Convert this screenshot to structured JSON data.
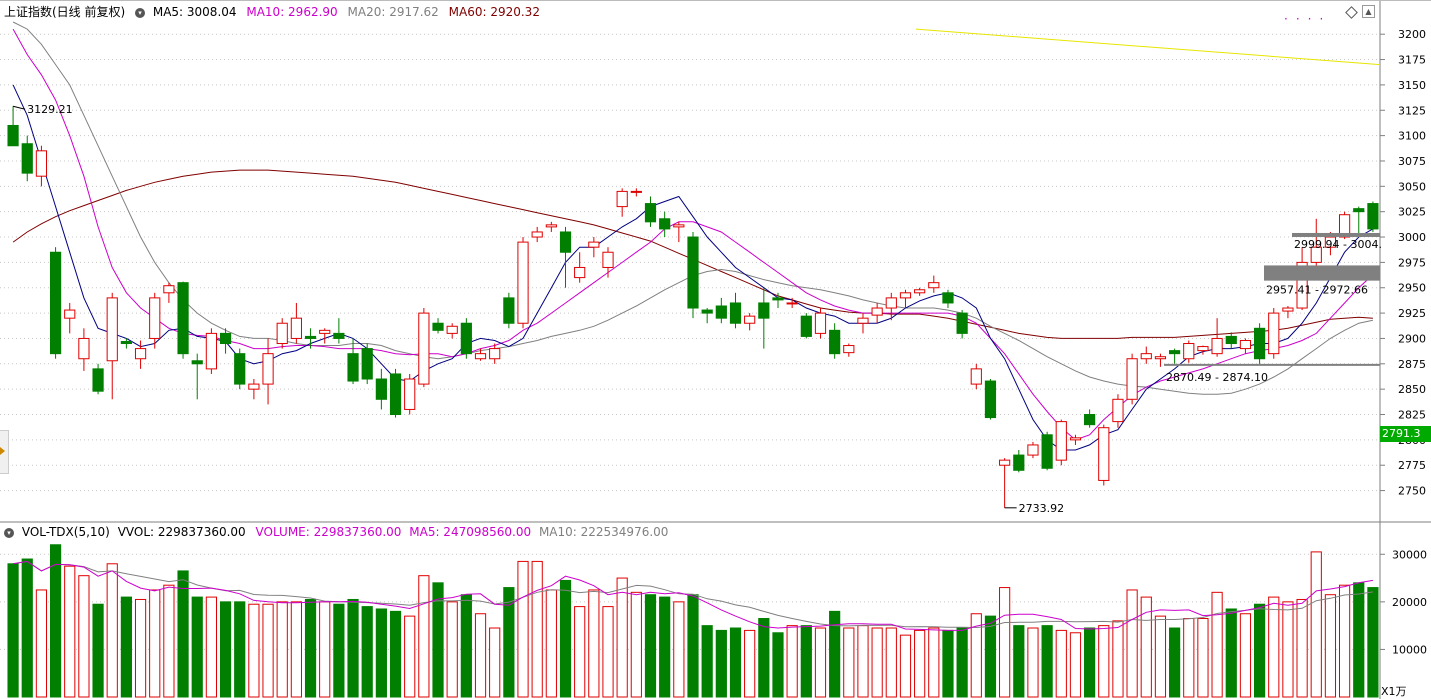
{
  "header": {
    "title": "上证指数(日线 前复权)",
    "ma5_label": "MA5: 3008.04",
    "ma10_label": "MA10: 2962.90",
    "ma20_label": "MA20: 2917.62",
    "ma60_label": "MA60: 2920.32"
  },
  "volume_header": {
    "indicator": "VOL-TDX(5,10)",
    "vvol": "VVOL: 229837360.00",
    "volume": "VOLUME: 229837360.00",
    "ma5": "MA5: 247098560.00",
    "ma10": "MA10: 222534976.00"
  },
  "current_price_tag": "2791.3",
  "volume_unit": "X1万",
  "annotations": {
    "high_label": "3129.21",
    "low_label": "2733.92",
    "range_top": "2999.94 - 3004.",
    "range_mid": "2957.41 - 2972.66",
    "range_low": "2870.49 - 2874.10"
  },
  "colors": {
    "up": "#e00000",
    "down": "#007f00",
    "ma5": "#000080",
    "ma10": "#cc00cc",
    "ma20": "#808080",
    "ma60": "#800000",
    "trend": "#e6e600",
    "price_tag_bg": "#00aa00"
  },
  "chart_data": {
    "type": "candlestick",
    "price_axis": {
      "ticks": [
        2750,
        2775,
        2800,
        2825,
        2850,
        2875,
        2900,
        2925,
        2950,
        2975,
        3000,
        3025,
        3050,
        3075,
        3100,
        3125,
        3150,
        3175,
        3200
      ],
      "range": [
        2720,
        3215
      ]
    },
    "volume_axis": {
      "ticks": [
        10000,
        20000,
        30000
      ],
      "range": [
        0,
        33000
      ],
      "unit": "X1万"
    },
    "candles": [
      {
        "o": 3110,
        "h": 3129,
        "l": 3090,
        "c": 3090,
        "v": 28000
      },
      {
        "o": 3092,
        "h": 3100,
        "l": 3055,
        "c": 3063,
        "v": 29000
      },
      {
        "o": 3060,
        "h": 3090,
        "l": 3050,
        "c": 3085,
        "v": 22500
      },
      {
        "o": 2985,
        "h": 2990,
        "l": 2880,
        "c": 2885,
        "v": 32000
      },
      {
        "o": 2920,
        "h": 2935,
        "l": 2905,
        "c": 2928,
        "v": 27500
      },
      {
        "o": 2880,
        "h": 2910,
        "l": 2868,
        "c": 2900,
        "v": 25500
      },
      {
        "o": 2870,
        "h": 2875,
        "l": 2845,
        "c": 2848,
        "v": 19500
      },
      {
        "o": 2878,
        "h": 2945,
        "l": 2840,
        "c": 2940,
        "v": 28000
      },
      {
        "o": 2897,
        "h": 2900,
        "l": 2890,
        "c": 2895,
        "v": 21000
      },
      {
        "o": 2880,
        "h": 2898,
        "l": 2870,
        "c": 2890,
        "v": 20500
      },
      {
        "o": 2900,
        "h": 2945,
        "l": 2890,
        "c": 2940,
        "v": 22500
      },
      {
        "o": 2945,
        "h": 2955,
        "l": 2935,
        "c": 2952,
        "v": 23500
      },
      {
        "o": 2955,
        "h": 2956,
        "l": 2880,
        "c": 2885,
        "v": 26500
      },
      {
        "o": 2878,
        "h": 2885,
        "l": 2840,
        "c": 2875,
        "v": 21000
      },
      {
        "o": 2870,
        "h": 2910,
        "l": 2865,
        "c": 2905,
        "v": 21000
      },
      {
        "o": 2905,
        "h": 2910,
        "l": 2885,
        "c": 2895,
        "v": 20000
      },
      {
        "o": 2885,
        "h": 2890,
        "l": 2850,
        "c": 2855,
        "v": 20000
      },
      {
        "o": 2850,
        "h": 2860,
        "l": 2840,
        "c": 2855,
        "v": 19500
      },
      {
        "o": 2855,
        "h": 2900,
        "l": 2835,
        "c": 2885,
        "v": 19500
      },
      {
        "o": 2895,
        "h": 2920,
        "l": 2890,
        "c": 2915,
        "v": 20000
      },
      {
        "o": 2900,
        "h": 2935,
        "l": 2895,
        "c": 2920,
        "v": 20000
      },
      {
        "o": 2902,
        "h": 2910,
        "l": 2890,
        "c": 2900,
        "v": 20500
      },
      {
        "o": 2905,
        "h": 2910,
        "l": 2895,
        "c": 2908,
        "v": 20000
      },
      {
        "o": 2905,
        "h": 2920,
        "l": 2895,
        "c": 2900,
        "v": 19500
      },
      {
        "o": 2885,
        "h": 2900,
        "l": 2855,
        "c": 2858,
        "v": 20500
      },
      {
        "o": 2890,
        "h": 2895,
        "l": 2855,
        "c": 2860,
        "v": 19000
      },
      {
        "o": 2860,
        "h": 2870,
        "l": 2830,
        "c": 2840,
        "v": 18500
      },
      {
        "o": 2865,
        "h": 2870,
        "l": 2822,
        "c": 2825,
        "v": 18000
      },
      {
        "o": 2830,
        "h": 2865,
        "l": 2825,
        "c": 2860,
        "v": 17000
      },
      {
        "o": 2855,
        "h": 2930,
        "l": 2852,
        "c": 2925,
        "v": 25500
      },
      {
        "o": 2915,
        "h": 2920,
        "l": 2905,
        "c": 2908,
        "v": 24000
      },
      {
        "o": 2905,
        "h": 2915,
        "l": 2900,
        "c": 2912,
        "v": 20000
      },
      {
        "o": 2915,
        "h": 2920,
        "l": 2880,
        "c": 2885,
        "v": 21500
      },
      {
        "o": 2880,
        "h": 2890,
        "l": 2878,
        "c": 2885,
        "v": 17500
      },
      {
        "o": 2880,
        "h": 2895,
        "l": 2875,
        "c": 2890,
        "v": 14500
      },
      {
        "o": 2940,
        "h": 2945,
        "l": 2910,
        "c": 2915,
        "v": 23000
      },
      {
        "o": 2915,
        "h": 3000,
        "l": 2910,
        "c": 2995,
        "v": 28500
      },
      {
        "o": 3000,
        "h": 3010,
        "l": 2995,
        "c": 3005,
        "v": 28500
      },
      {
        "o": 3010,
        "h": 3015,
        "l": 3005,
        "c": 3012,
        "v": 22500
      },
      {
        "o": 3005,
        "h": 3010,
        "l": 2950,
        "c": 2985,
        "v": 24500
      },
      {
        "o": 2960,
        "h": 2985,
        "l": 2955,
        "c": 2970,
        "v": 19000
      },
      {
        "o": 2990,
        "h": 3000,
        "l": 2980,
        "c": 2995,
        "v": 22500
      },
      {
        "o": 2970,
        "h": 2990,
        "l": 2960,
        "c": 2985,
        "v": 19000
      },
      {
        "o": 3030,
        "h": 3048,
        "l": 3020,
        "c": 3045,
        "v": 25000
      },
      {
        "o": 3045,
        "h": 3048,
        "l": 3040,
        "c": 3045,
        "v": 22000
      },
      {
        "o": 3033,
        "h": 3040,
        "l": 3010,
        "c": 3015,
        "v": 21500
      },
      {
        "o": 3018,
        "h": 3025,
        "l": 3000,
        "c": 3008,
        "v": 21000
      },
      {
        "o": 3010,
        "h": 3015,
        "l": 2995,
        "c": 3012,
        "v": 20000
      },
      {
        "o": 3000,
        "h": 3005,
        "l": 2920,
        "c": 2930,
        "v": 21500
      },
      {
        "o": 2928,
        "h": 2930,
        "l": 2915,
        "c": 2925,
        "v": 15000
      },
      {
        "o": 2932,
        "h": 2940,
        "l": 2915,
        "c": 2920,
        "v": 14000
      },
      {
        "o": 2935,
        "h": 2945,
        "l": 2910,
        "c": 2915,
        "v": 14500
      },
      {
        "o": 2915,
        "h": 2925,
        "l": 2908,
        "c": 2922,
        "v": 14000
      },
      {
        "o": 2935,
        "h": 2950,
        "l": 2890,
        "c": 2920,
        "v": 16500
      },
      {
        "o": 2940,
        "h": 2945,
        "l": 2930,
        "c": 2938,
        "v": 13500
      },
      {
        "o": 2935,
        "h": 2940,
        "l": 2930,
        "c": 2935,
        "v": 15000
      },
      {
        "o": 2922,
        "h": 2925,
        "l": 2900,
        "c": 2902,
        "v": 15000
      },
      {
        "o": 2905,
        "h": 2930,
        "l": 2900,
        "c": 2925,
        "v": 14500
      },
      {
        "o": 2908,
        "h": 2915,
        "l": 2880,
        "c": 2885,
        "v": 18000
      },
      {
        "o": 2886,
        "h": 2895,
        "l": 2882,
        "c": 2893,
        "v": 14500
      },
      {
        "o": 2915,
        "h": 2925,
        "l": 2905,
        "c": 2920,
        "v": 15000
      },
      {
        "o": 2923,
        "h": 2935,
        "l": 2915,
        "c": 2930,
        "v": 14500
      },
      {
        "o": 2930,
        "h": 2945,
        "l": 2918,
        "c": 2940,
        "v": 14500
      },
      {
        "o": 2940,
        "h": 2948,
        "l": 2930,
        "c": 2945,
        "v": 13000
      },
      {
        "o": 2945,
        "h": 2950,
        "l": 2942,
        "c": 2948,
        "v": 14000
      },
      {
        "o": 2950,
        "h": 2962,
        "l": 2945,
        "c": 2955,
        "v": 14500
      },
      {
        "o": 2945,
        "h": 2948,
        "l": 2930,
        "c": 2935,
        "v": 14000
      },
      {
        "o": 2925,
        "h": 2928,
        "l": 2900,
        "c": 2905,
        "v": 14500
      },
      {
        "o": 2855,
        "h": 2875,
        "l": 2850,
        "c": 2870,
        "v": 17500
      },
      {
        "o": 2858,
        "h": 2860,
        "l": 2820,
        "c": 2822,
        "v": 17000
      },
      {
        "o": 2775,
        "h": 2782,
        "l": 2733,
        "c": 2780,
        "v": 23000
      },
      {
        "o": 2785,
        "h": 2790,
        "l": 2768,
        "c": 2770,
        "v": 15000
      },
      {
        "o": 2785,
        "h": 2798,
        "l": 2782,
        "c": 2795,
        "v": 14500
      },
      {
        "o": 2805,
        "h": 2808,
        "l": 2770,
        "c": 2772,
        "v": 15000
      },
      {
        "o": 2780,
        "h": 2820,
        "l": 2775,
        "c": 2818,
        "v": 14000
      },
      {
        "o": 2800,
        "h": 2805,
        "l": 2795,
        "c": 2802,
        "v": 13500
      },
      {
        "o": 2825,
        "h": 2830,
        "l": 2812,
        "c": 2815,
        "v": 14500
      },
      {
        "o": 2760,
        "h": 2815,
        "l": 2755,
        "c": 2812,
        "v": 15000
      },
      {
        "o": 2818,
        "h": 2845,
        "l": 2812,
        "c": 2840,
        "v": 16000
      },
      {
        "o": 2840,
        "h": 2885,
        "l": 2835,
        "c": 2880,
        "v": 22500
      },
      {
        "o": 2880,
        "h": 2892,
        "l": 2875,
        "c": 2885,
        "v": 21000
      },
      {
        "o": 2880,
        "h": 2885,
        "l": 2872,
        "c": 2882,
        "v": 17000
      },
      {
        "o": 2888,
        "h": 2890,
        "l": 2875,
        "c": 2885,
        "v": 14500
      },
      {
        "o": 2880,
        "h": 2898,
        "l": 2876,
        "c": 2895,
        "v": 16500
      },
      {
        "o": 2888,
        "h": 2893,
        "l": 2884,
        "c": 2892,
        "v": 16500
      },
      {
        "o": 2885,
        "h": 2920,
        "l": 2882,
        "c": 2900,
        "v": 22000
      },
      {
        "o": 2902,
        "h": 2906,
        "l": 2890,
        "c": 2895,
        "v": 18500
      },
      {
        "o": 2890,
        "h": 2900,
        "l": 2885,
        "c": 2898,
        "v": 17500
      },
      {
        "o": 2910,
        "h": 2915,
        "l": 2875,
        "c": 2880,
        "v": 19500
      },
      {
        "o": 2885,
        "h": 2930,
        "l": 2880,
        "c": 2925,
        "v": 21000
      },
      {
        "o": 2927,
        "h": 2932,
        "l": 2920,
        "c": 2930,
        "v": 20000
      },
      {
        "o": 2930,
        "h": 2990,
        "l": 2928,
        "c": 2975,
        "v": 20500
      },
      {
        "o": 2975,
        "h": 3018,
        "l": 2970,
        "c": 2990,
        "v": 30500
      },
      {
        "o": 2990,
        "h": 3005,
        "l": 2982,
        "c": 3000,
        "v": 21500
      },
      {
        "o": 3000,
        "h": 3025,
        "l": 2998,
        "c": 3022,
        "v": 23500
      },
      {
        "o": 3028,
        "h": 3030,
        "l": 3000,
        "c": 3025,
        "v": 24000
      },
      {
        "o": 3033,
        "h": 3035,
        "l": 3005,
        "c": 3008,
        "v": 23000
      }
    ],
    "ma5": [
      3150,
      3120,
      3075,
      3030,
      2985,
      2940,
      2910,
      2905,
      2900,
      2892,
      2895,
      2908,
      2910,
      2902,
      2900,
      2897,
      2880,
      2875,
      2878,
      2885,
      2888,
      2895,
      2900,
      2905,
      2900,
      2890,
      2875,
      2860,
      2858,
      2868,
      2875,
      2880,
      2895,
      2900,
      2898,
      2892,
      2900,
      2925,
      2950,
      2975,
      2990,
      2990,
      3000,
      3010,
      3018,
      3030,
      3035,
      3040,
      3020,
      3000,
      2985,
      2970,
      2960,
      2950,
      2940,
      2938,
      2930,
      2925,
      2922,
      2915,
      2915,
      2915,
      2920,
      2930,
      2937,
      2942,
      2945,
      2940,
      2930,
      2900,
      2880,
      2850,
      2820,
      2800,
      2790,
      2790,
      2795,
      2805,
      2810,
      2830,
      2850,
      2860,
      2870,
      2882,
      2887,
      2890,
      2890,
      2892,
      2895,
      2895,
      2900,
      2915,
      2935,
      2960,
      2985,
      3000,
      3008
    ],
    "ma10": [
      3205,
      3180,
      3160,
      3135,
      3100,
      3060,
      3010,
      2970,
      2945,
      2930,
      2920,
      2910,
      2905,
      2903,
      2902,
      2898,
      2895,
      2890,
      2890,
      2892,
      2893,
      2893,
      2892,
      2890,
      2890,
      2890,
      2888,
      2885,
      2884,
      2885,
      2885,
      2882,
      2885,
      2890,
      2893,
      2898,
      2908,
      2915,
      2925,
      2935,
      2945,
      2955,
      2965,
      2975,
      2985,
      2995,
      3008,
      3015,
      3015,
      3010,
      3005,
      2995,
      2985,
      2975,
      2965,
      2955,
      2945,
      2938,
      2932,
      2928,
      2925,
      2925,
      2925,
      2925,
      2925,
      2925,
      2925,
      2922,
      2915,
      2900,
      2885,
      2865,
      2845,
      2828,
      2812,
      2800,
      2805,
      2820,
      2832,
      2844,
      2852,
      2858,
      2862,
      2866,
      2870,
      2875,
      2880,
      2885,
      2888,
      2890,
      2893,
      2898,
      2905,
      2920,
      2935,
      2950,
      2963
    ],
    "ma20": [
      3212,
      3205,
      3190,
      3170,
      3150,
      3120,
      3090,
      3060,
      3030,
      3000,
      2975,
      2955,
      2938,
      2925,
      2915,
      2908,
      2902,
      2900,
      2900,
      2898,
      2895,
      2893,
      2893,
      2893,
      2895,
      2895,
      2893,
      2888,
      2885,
      2882,
      2880,
      2882,
      2885,
      2888,
      2890,
      2892,
      2895,
      2898,
      2902,
      2905,
      2908,
      2912,
      2918,
      2925,
      2932,
      2940,
      2948,
      2955,
      2962,
      2966,
      2968,
      2966,
      2962,
      2958,
      2955,
      2952,
      2950,
      2948,
      2945,
      2942,
      2938,
      2935,
      2932,
      2930,
      2930,
      2930,
      2928,
      2925,
      2920,
      2912,
      2905,
      2898,
      2890,
      2882,
      2875,
      2868,
      2862,
      2858,
      2855,
      2853,
      2852,
      2850,
      2848,
      2846,
      2845,
      2845,
      2846,
      2850,
      2855,
      2862,
      2870,
      2880,
      2890,
      2900,
      2908,
      2915,
      2918
    ],
    "ma60": [
      2995,
      3005,
      3013,
      3020,
      3026,
      3031,
      3036,
      3041,
      3046,
      3050,
      3054,
      3057,
      3060,
      3062,
      3064,
      3065,
      3066,
      3066,
      3066,
      3065,
      3064,
      3063,
      3062,
      3061,
      3060,
      3058,
      3056,
      3054,
      3051,
      3048,
      3045,
      3042,
      3039,
      3036,
      3033,
      3030,
      3027,
      3024,
      3021,
      3018,
      3015,
      3012,
      3008,
      3004,
      3000,
      2996,
      2990,
      2984,
      2978,
      2972,
      2966,
      2960,
      2954,
      2948,
      2942,
      2938,
      2934,
      2930,
      2928,
      2926,
      2925,
      2925,
      2924,
      2924,
      2924,
      2922,
      2920,
      2917,
      2914,
      2911,
      2908,
      2905,
      2903,
      2901,
      2900,
      2900,
      2900,
      2900,
      2900,
      2901,
      2901,
      2901,
      2901,
      2902,
      2903,
      2904,
      2905,
      2906,
      2907,
      2908,
      2910,
      2913,
      2916,
      2919,
      2920,
      2921,
      2920
    ]
  }
}
